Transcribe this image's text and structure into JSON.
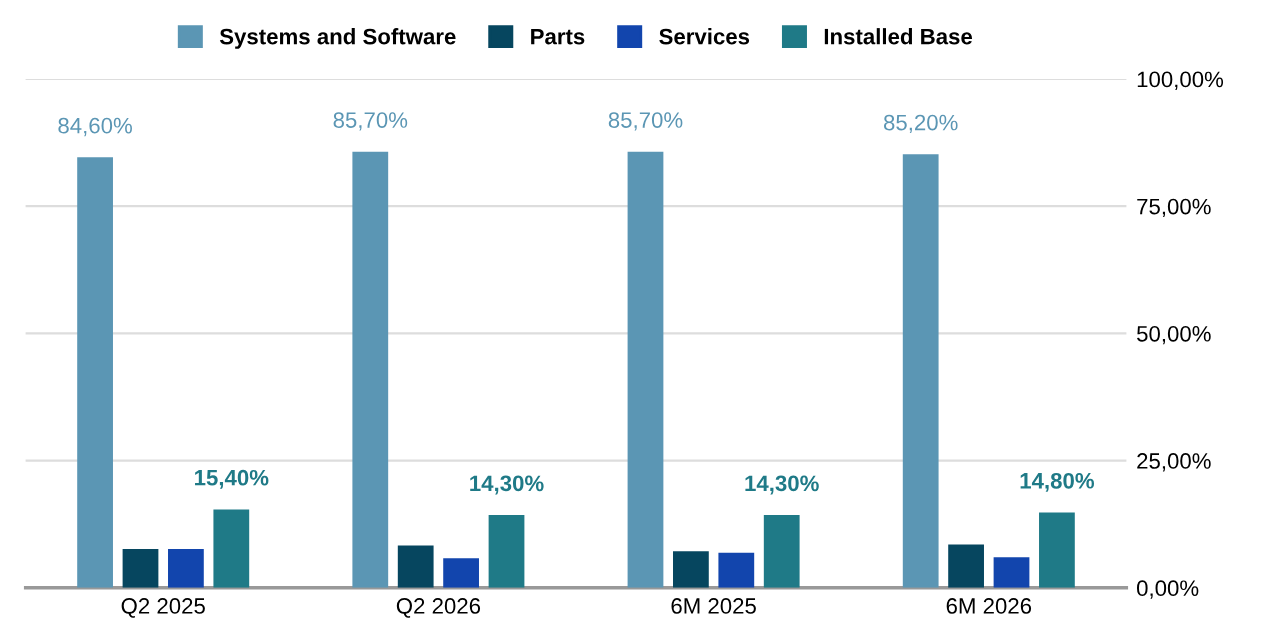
{
  "chart_data": {
    "type": "bar",
    "categories": [
      "Q2 2025",
      "Q2 2026",
      "6M 2025",
      "6M 2026"
    ],
    "series": [
      {
        "name": "Systems and Software",
        "color": "#5b96b4",
        "values": [
          84.6,
          85.7,
          85.7,
          85.2
        ],
        "value_labels": [
          "84,60%",
          "85,70%",
          "85,70%",
          "85,20%"
        ]
      },
      {
        "name": "Parts",
        "color": "#06465f",
        "values": [
          7.6,
          8.3,
          7.2,
          8.5
        ]
      },
      {
        "name": "Services",
        "color": "#1245ad",
        "values": [
          7.6,
          5.8,
          6.9,
          6.0
        ]
      },
      {
        "name": "Installed Base",
        "color": "#1f7a87",
        "values": [
          15.4,
          14.3,
          14.3,
          14.8
        ],
        "value_labels": [
          "15,40%",
          "14,30%",
          "14,30%",
          "14,80%"
        ]
      }
    ],
    "ylim": [
      0,
      100
    ],
    "yticks": [
      {
        "value": 0,
        "label": "0,00%"
      },
      {
        "value": 25,
        "label": "25,00%"
      },
      {
        "value": 50,
        "label": "50,00%"
      },
      {
        "value": 75,
        "label": "75,00%"
      },
      {
        "value": 100,
        "label": "100,00%"
      }
    ],
    "grid": "y",
    "legend": "top"
  }
}
